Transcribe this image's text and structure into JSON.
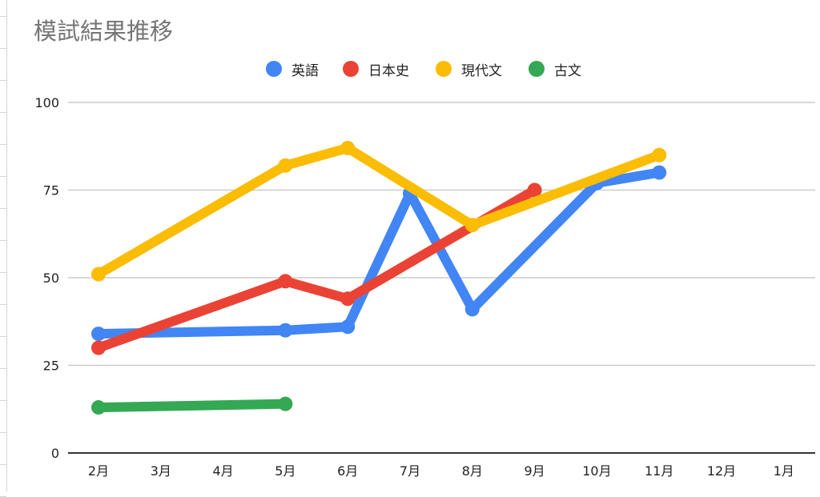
{
  "chart_data": {
    "type": "line",
    "title": "模試結果推移",
    "categories": [
      "2月",
      "3月",
      "4月",
      "5月",
      "6月",
      "7月",
      "8月",
      "9月",
      "10月",
      "11月",
      "12月",
      "1月"
    ],
    "ylim": [
      0,
      100
    ],
    "yticks": [
      "0",
      "25",
      "50",
      "75",
      "100"
    ],
    "ytick_values": [
      0,
      25,
      50,
      75,
      100
    ],
    "grid": true,
    "legend_position": "top-center",
    "series": [
      {
        "name": "英語",
        "color": "#4285F4",
        "points": [
          {
            "x": "2月",
            "y": 34
          },
          {
            "x": "5月",
            "y": 35
          },
          {
            "x": "6月",
            "y": 36
          },
          {
            "x": "7月",
            "y": 74
          },
          {
            "x": "8月",
            "y": 41
          },
          {
            "x": "10月",
            "y": 77
          },
          {
            "x": "11月",
            "y": 80
          }
        ]
      },
      {
        "name": "日本史",
        "color": "#EA4335",
        "points": [
          {
            "x": "2月",
            "y": 30
          },
          {
            "x": "5月",
            "y": 49
          },
          {
            "x": "6月",
            "y": 44
          },
          {
            "x": "9月",
            "y": 75
          }
        ]
      },
      {
        "name": "現代文",
        "color": "#FBBC04",
        "points": [
          {
            "x": "2月",
            "y": 51
          },
          {
            "x": "5月",
            "y": 82
          },
          {
            "x": "6月",
            "y": 87
          },
          {
            "x": "8月",
            "y": 65
          },
          {
            "x": "11月",
            "y": 85
          }
        ]
      },
      {
        "name": "古文",
        "color": "#34A853",
        "points": [
          {
            "x": "2月",
            "y": 13
          },
          {
            "x": "5月",
            "y": 14
          }
        ]
      }
    ]
  }
}
